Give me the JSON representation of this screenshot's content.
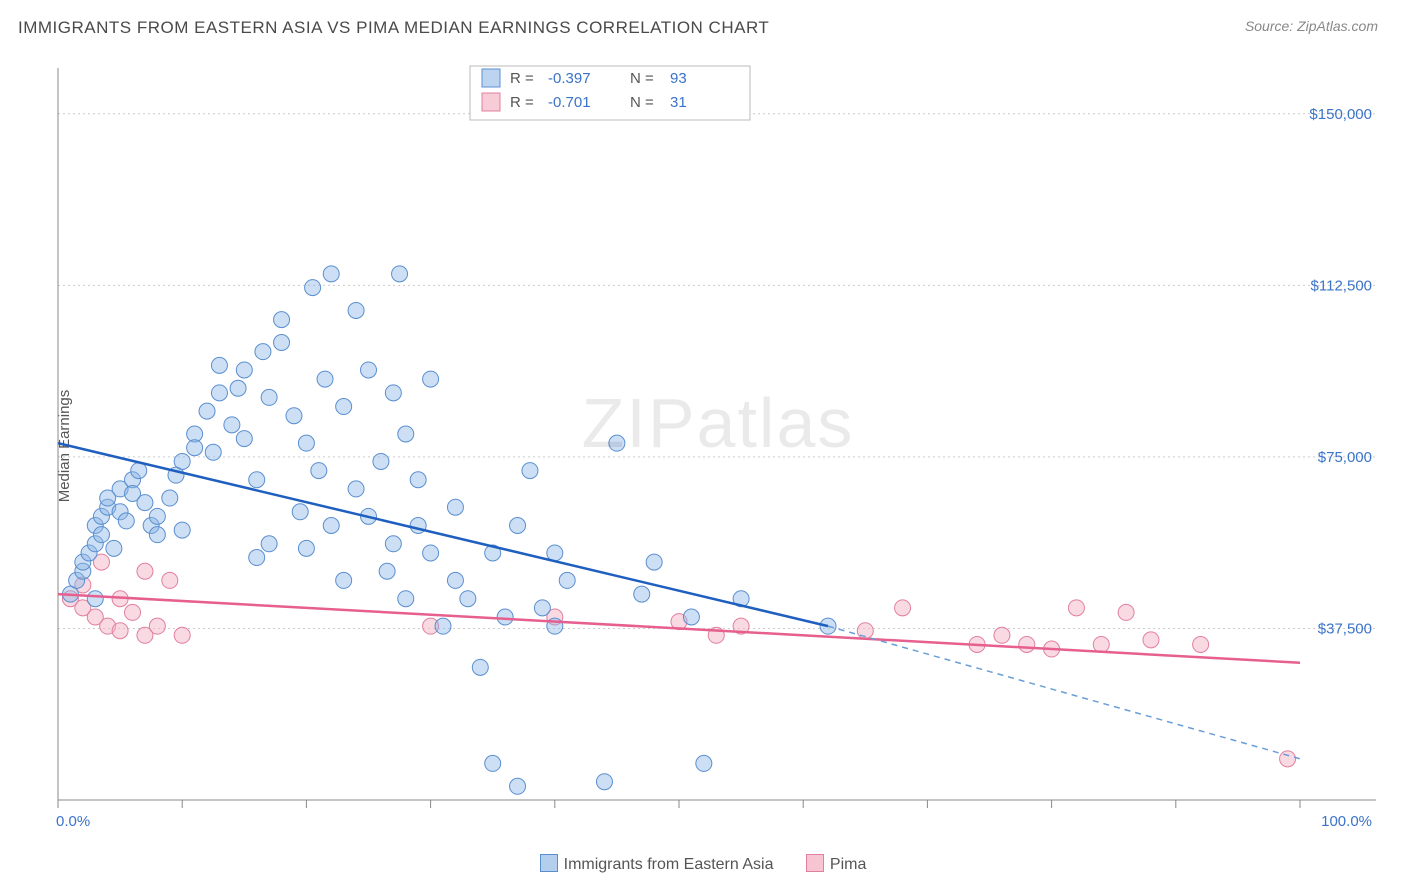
{
  "title": "IMMIGRANTS FROM EASTERN ASIA VS PIMA MEDIAN EARNINGS CORRELATION CHART",
  "source_label": "Source: ",
  "source_value": "ZipAtlas.com",
  "watermark": "ZIPatlas",
  "ylabel": "Median Earnings",
  "chart": {
    "type": "scatter",
    "xlim": [
      0,
      100
    ],
    "ylim": [
      0,
      160000
    ],
    "xtick_labels": {
      "min": "0.0%",
      "max": "100.0%"
    },
    "xtick_positions": [
      0,
      10,
      20,
      30,
      40,
      50,
      60,
      70,
      80,
      90,
      100
    ],
    "ytick_positions": [
      37500,
      75000,
      112500,
      150000
    ],
    "ytick_labels": [
      "$37,500",
      "$75,000",
      "$112,500",
      "$150,000"
    ],
    "grid_color": "#cccccc",
    "background_color": "#ffffff",
    "marker_radius": 8,
    "series": [
      {
        "key": "a",
        "name": "Immigrants from Eastern Asia",
        "color_fill": "#8fb7e6",
        "color_stroke": "#5a8fcf",
        "trend_color": "#1f5fbf",
        "R": "-0.397",
        "N": "93",
        "trend": {
          "x1": 0,
          "y1": 78000,
          "x2": 62,
          "y2": 38000,
          "dash_x2": 100,
          "dash_y2": 9000
        },
        "points": [
          [
            1,
            45000
          ],
          [
            1.5,
            48000
          ],
          [
            2,
            50000
          ],
          [
            2,
            52000
          ],
          [
            2.5,
            54000
          ],
          [
            3,
            56000
          ],
          [
            3,
            60000
          ],
          [
            3.5,
            58000
          ],
          [
            3.5,
            62000
          ],
          [
            4,
            64000
          ],
          [
            4,
            66000
          ],
          [
            4.5,
            55000
          ],
          [
            5,
            68000
          ],
          [
            5,
            63000
          ],
          [
            5.5,
            61000
          ],
          [
            6,
            70000
          ],
          [
            6,
            67000
          ],
          [
            6.5,
            72000
          ],
          [
            7,
            65000
          ],
          [
            7.5,
            60000
          ],
          [
            8,
            62000
          ],
          [
            8,
            58000
          ],
          [
            9,
            66000
          ],
          [
            9.5,
            71000
          ],
          [
            10,
            59000
          ],
          [
            10,
            74000
          ],
          [
            11,
            80000
          ],
          [
            11,
            77000
          ],
          [
            12,
            85000
          ],
          [
            12.5,
            76000
          ],
          [
            13,
            89000
          ],
          [
            13,
            95000
          ],
          [
            14,
            82000
          ],
          [
            14.5,
            90000
          ],
          [
            15,
            79000
          ],
          [
            15,
            94000
          ],
          [
            16,
            53000
          ],
          [
            16,
            70000
          ],
          [
            16.5,
            98000
          ],
          [
            17,
            88000
          ],
          [
            17,
            56000
          ],
          [
            18,
            100000
          ],
          [
            18,
            105000
          ],
          [
            19,
            84000
          ],
          [
            19.5,
            63000
          ],
          [
            20,
            55000
          ],
          [
            20,
            78000
          ],
          [
            20.5,
            112000
          ],
          [
            21,
            72000
          ],
          [
            21.5,
            92000
          ],
          [
            22,
            115000
          ],
          [
            22,
            60000
          ],
          [
            23,
            48000
          ],
          [
            23,
            86000
          ],
          [
            24,
            107000
          ],
          [
            24,
            68000
          ],
          [
            25,
            94000
          ],
          [
            25,
            62000
          ],
          [
            26,
            74000
          ],
          [
            26.5,
            50000
          ],
          [
            27,
            89000
          ],
          [
            27,
            56000
          ],
          [
            27.5,
            115000
          ],
          [
            28,
            44000
          ],
          [
            28,
            80000
          ],
          [
            29,
            60000
          ],
          [
            29,
            70000
          ],
          [
            30,
            92000
          ],
          [
            30,
            54000
          ],
          [
            31,
            38000
          ],
          [
            32,
            48000
          ],
          [
            32,
            64000
          ],
          [
            33,
            44000
          ],
          [
            34,
            29000
          ],
          [
            35,
            54000
          ],
          [
            36,
            40000
          ],
          [
            37,
            60000
          ],
          [
            38,
            72000
          ],
          [
            39,
            42000
          ],
          [
            40,
            38000
          ],
          [
            40,
            54000
          ],
          [
            41,
            48000
          ],
          [
            35,
            8000
          ],
          [
            37,
            3000
          ],
          [
            44,
            4000
          ],
          [
            45,
            78000
          ],
          [
            47,
            45000
          ],
          [
            48,
            52000
          ],
          [
            51,
            40000
          ],
          [
            52,
            8000
          ],
          [
            55,
            44000
          ],
          [
            62,
            38000
          ],
          [
            3,
            44000
          ]
        ]
      },
      {
        "key": "b",
        "name": "Pima",
        "color_fill": "#f4b6c6",
        "color_stroke": "#e17fa0",
        "trend_color": "#e65f8f",
        "R": "-0.701",
        "N": "31",
        "trend": {
          "x1": 0,
          "y1": 45000,
          "x2": 100,
          "y2": 30000
        },
        "points": [
          [
            1,
            44000
          ],
          [
            2,
            47000
          ],
          [
            2,
            42000
          ],
          [
            3,
            40000
          ],
          [
            3.5,
            52000
          ],
          [
            4,
            38000
          ],
          [
            5,
            44000
          ],
          [
            5,
            37000
          ],
          [
            6,
            41000
          ],
          [
            7,
            36000
          ],
          [
            7,
            50000
          ],
          [
            8,
            38000
          ],
          [
            9,
            48000
          ],
          [
            10,
            36000
          ],
          [
            30,
            38000
          ],
          [
            40,
            40000
          ],
          [
            50,
            39000
          ],
          [
            53,
            36000
          ],
          [
            55,
            38000
          ],
          [
            65,
            37000
          ],
          [
            68,
            42000
          ],
          [
            74,
            34000
          ],
          [
            76,
            36000
          ],
          [
            78,
            34000
          ],
          [
            80,
            33000
          ],
          [
            82,
            42000
          ],
          [
            84,
            34000
          ],
          [
            86,
            41000
          ],
          [
            88,
            35000
          ],
          [
            92,
            34000
          ],
          [
            99,
            9000
          ]
        ]
      }
    ]
  },
  "legend_top": {
    "R_label": "R =",
    "N_label": "N ="
  },
  "legend_bottom": {
    "items": [
      {
        "key": "a",
        "label": "Immigrants from Eastern Asia"
      },
      {
        "key": "b",
        "label": "Pima"
      }
    ]
  }
}
